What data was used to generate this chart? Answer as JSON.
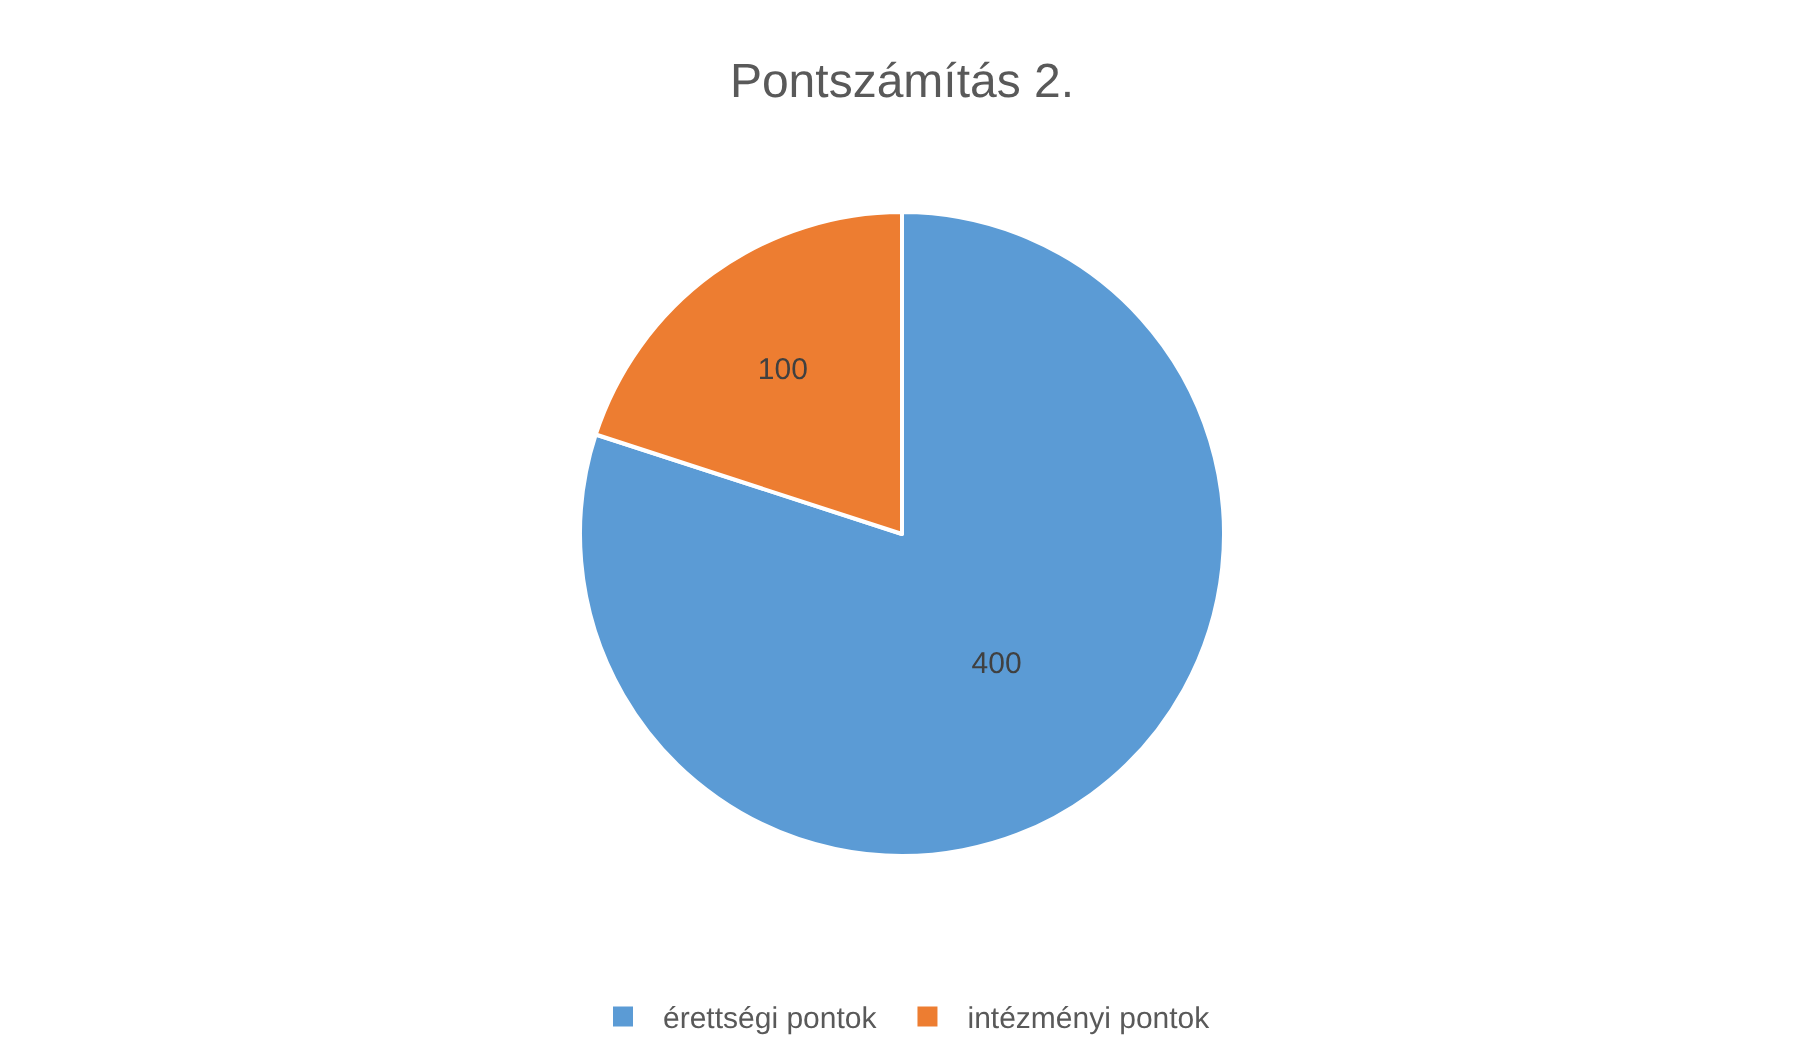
{
  "chart_data": {
    "type": "pie",
    "title": "Pontszámítás 2.",
    "categories": [
      "érettségi pontok",
      "intézményi pontok"
    ],
    "values": [
      400,
      100
    ],
    "colors": [
      "#5b9bd5",
      "#ed7d31"
    ],
    "data_labels": true,
    "legend": "bottom"
  }
}
